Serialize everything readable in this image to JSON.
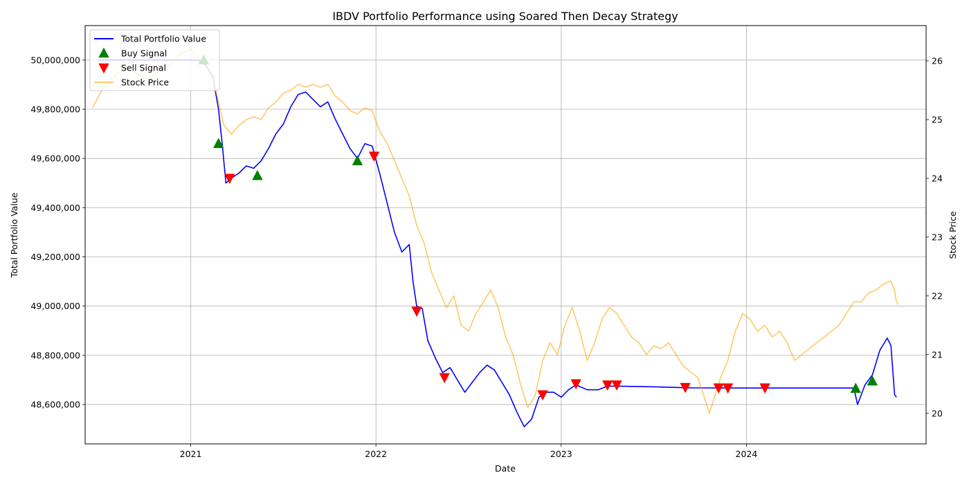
{
  "chart_data": {
    "type": "line",
    "title": "IBDV Portfolio Performance using Soared Then Decay Strategy",
    "xlabel": "Date",
    "ylabel_left": "Total Portfolio Value",
    "ylabel_right": "Stock Price",
    "x_range": [
      2020.43,
      2024.97
    ],
    "ylim_left": [
      48440000,
      50140000
    ],
    "ylim_right": [
      19.48,
      26.6
    ],
    "grid": true,
    "legend_position": "upper-left",
    "x_ticks": [
      {
        "value": 2021,
        "label": "2021"
      },
      {
        "value": 2022,
        "label": "2022"
      },
      {
        "value": 2023,
        "label": "2023"
      },
      {
        "value": 2024,
        "label": "2024"
      }
    ],
    "y_left_ticks": [
      {
        "value": 48600000,
        "label": "48,600,000"
      },
      {
        "value": 48800000,
        "label": "48,800,000"
      },
      {
        "value": 49000000,
        "label": "49,000,000"
      },
      {
        "value": 49200000,
        "label": "49,200,000"
      },
      {
        "value": 49400000,
        "label": "49,400,000"
      },
      {
        "value": 49600000,
        "label": "49,600,000"
      },
      {
        "value": 49800000,
        "label": "49,800,000"
      },
      {
        "value": 50000000,
        "label": "50,000,000"
      }
    ],
    "y_right_ticks": [
      {
        "value": 20,
        "label": "20"
      },
      {
        "value": 21,
        "label": "21"
      },
      {
        "value": 22,
        "label": "22"
      },
      {
        "value": 23,
        "label": "23"
      },
      {
        "value": 24,
        "label": "24"
      },
      {
        "value": 25,
        "label": "25"
      },
      {
        "value": 26,
        "label": "26"
      }
    ],
    "series": [
      {
        "name": "Total Portfolio Value",
        "axis": "left",
        "color": "#0000ff",
        "points": [
          [
            2020.5,
            50000000
          ],
          [
            2021.0,
            50000000
          ],
          [
            2021.04,
            50000000
          ],
          [
            2021.08,
            49980000
          ],
          [
            2021.12,
            49930000
          ],
          [
            2021.15,
            49800000
          ],
          [
            2021.17,
            49660000
          ],
          [
            2021.19,
            49500000
          ],
          [
            2021.22,
            49520000
          ],
          [
            2021.26,
            49540000
          ],
          [
            2021.3,
            49570000
          ],
          [
            2021.34,
            49560000
          ],
          [
            2021.38,
            49590000
          ],
          [
            2021.42,
            49640000
          ],
          [
            2021.46,
            49700000
          ],
          [
            2021.5,
            49740000
          ],
          [
            2021.54,
            49810000
          ],
          [
            2021.58,
            49860000
          ],
          [
            2021.62,
            49870000
          ],
          [
            2021.66,
            49840000
          ],
          [
            2021.7,
            49810000
          ],
          [
            2021.74,
            49830000
          ],
          [
            2021.78,
            49760000
          ],
          [
            2021.82,
            49700000
          ],
          [
            2021.86,
            49640000
          ],
          [
            2021.9,
            49600000
          ],
          [
            2021.94,
            49660000
          ],
          [
            2021.98,
            49650000
          ],
          [
            2022.02,
            49540000
          ],
          [
            2022.06,
            49420000
          ],
          [
            2022.1,
            49300000
          ],
          [
            2022.14,
            49220000
          ],
          [
            2022.18,
            49250000
          ],
          [
            2022.2,
            49100000
          ],
          [
            2022.22,
            49000000
          ],
          [
            2022.25,
            48990000
          ],
          [
            2022.28,
            48860000
          ],
          [
            2022.32,
            48790000
          ],
          [
            2022.36,
            48730000
          ],
          [
            2022.4,
            48750000
          ],
          [
            2022.44,
            48700000
          ],
          [
            2022.48,
            48650000
          ],
          [
            2022.52,
            48690000
          ],
          [
            2022.56,
            48730000
          ],
          [
            2022.6,
            48760000
          ],
          [
            2022.64,
            48740000
          ],
          [
            2022.68,
            48690000
          ],
          [
            2022.72,
            48640000
          ],
          [
            2022.76,
            48570000
          ],
          [
            2022.8,
            48510000
          ],
          [
            2022.84,
            48540000
          ],
          [
            2022.88,
            48630000
          ],
          [
            2022.92,
            48650000
          ],
          [
            2022.96,
            48650000
          ],
          [
            2023.0,
            48630000
          ],
          [
            2023.04,
            48660000
          ],
          [
            2023.08,
            48680000
          ],
          [
            2023.14,
            48660000
          ],
          [
            2023.2,
            48660000
          ],
          [
            2023.25,
            48675000
          ],
          [
            2023.3,
            48675000
          ],
          [
            2023.5,
            48672000
          ],
          [
            2023.7,
            48668000
          ],
          [
            2023.9,
            48667000
          ],
          [
            2024.2,
            48667000
          ],
          [
            2024.58,
            48667000
          ],
          [
            2024.6,
            48600000
          ],
          [
            2024.64,
            48680000
          ],
          [
            2024.68,
            48720000
          ],
          [
            2024.72,
            48820000
          ],
          [
            2024.76,
            48870000
          ],
          [
            2024.78,
            48840000
          ],
          [
            2024.8,
            48640000
          ],
          [
            2024.81,
            48630000
          ]
        ]
      },
      {
        "name": "Stock Price",
        "axis": "right",
        "color": "#ffa500",
        "opacity": 0.6,
        "points": [
          [
            2020.47,
            25.2
          ],
          [
            2020.52,
            25.5
          ],
          [
            2020.58,
            25.7
          ],
          [
            2020.64,
            25.9
          ],
          [
            2020.7,
            25.8
          ],
          [
            2020.76,
            25.7
          ],
          [
            2020.82,
            25.8
          ],
          [
            2020.88,
            25.9
          ],
          [
            2020.94,
            26.1
          ],
          [
            2021.0,
            26.2
          ],
          [
            2021.04,
            26.05
          ],
          [
            2021.08,
            25.95
          ],
          [
            2021.12,
            25.7
          ],
          [
            2021.15,
            25.3
          ],
          [
            2021.18,
            24.9
          ],
          [
            2021.22,
            24.75
          ],
          [
            2021.26,
            24.9
          ],
          [
            2021.3,
            25.0
          ],
          [
            2021.34,
            25.05
          ],
          [
            2021.38,
            25.0
          ],
          [
            2021.42,
            25.2
          ],
          [
            2021.46,
            25.3
          ],
          [
            2021.5,
            25.45
          ],
          [
            2021.54,
            25.5
          ],
          [
            2021.58,
            25.6
          ],
          [
            2021.62,
            25.55
          ],
          [
            2021.66,
            25.6
          ],
          [
            2021.7,
            25.55
          ],
          [
            2021.74,
            25.6
          ],
          [
            2021.78,
            25.4
          ],
          [
            2021.82,
            25.3
          ],
          [
            2021.86,
            25.15
          ],
          [
            2021.9,
            25.1
          ],
          [
            2021.94,
            25.2
          ],
          [
            2021.98,
            25.15
          ],
          [
            2022.02,
            24.8
          ],
          [
            2022.06,
            24.6
          ],
          [
            2022.1,
            24.3
          ],
          [
            2022.14,
            24.0
          ],
          [
            2022.18,
            23.7
          ],
          [
            2022.22,
            23.2
          ],
          [
            2022.26,
            22.9
          ],
          [
            2022.3,
            22.4
          ],
          [
            2022.34,
            22.1
          ],
          [
            2022.38,
            21.8
          ],
          [
            2022.42,
            22.0
          ],
          [
            2022.46,
            21.5
          ],
          [
            2022.5,
            21.4
          ],
          [
            2022.54,
            21.7
          ],
          [
            2022.58,
            21.9
          ],
          [
            2022.62,
            22.1
          ],
          [
            2022.66,
            21.8
          ],
          [
            2022.7,
            21.3
          ],
          [
            2022.74,
            21.0
          ],
          [
            2022.78,
            20.5
          ],
          [
            2022.82,
            20.1
          ],
          [
            2022.86,
            20.3
          ],
          [
            2022.9,
            20.9
          ],
          [
            2022.94,
            21.2
          ],
          [
            2022.98,
            21.0
          ],
          [
            2023.02,
            21.5
          ],
          [
            2023.06,
            21.8
          ],
          [
            2023.1,
            21.4
          ],
          [
            2023.14,
            20.9
          ],
          [
            2023.18,
            21.2
          ],
          [
            2023.22,
            21.6
          ],
          [
            2023.26,
            21.8
          ],
          [
            2023.3,
            21.7
          ],
          [
            2023.34,
            21.5
          ],
          [
            2023.38,
            21.3
          ],
          [
            2023.42,
            21.2
          ],
          [
            2023.46,
            21.0
          ],
          [
            2023.5,
            21.15
          ],
          [
            2023.54,
            21.1
          ],
          [
            2023.58,
            21.2
          ],
          [
            2023.62,
            21.0
          ],
          [
            2023.66,
            20.8
          ],
          [
            2023.7,
            20.7
          ],
          [
            2023.74,
            20.6
          ],
          [
            2023.78,
            20.2
          ],
          [
            2023.8,
            20.0
          ],
          [
            2023.83,
            20.3
          ],
          [
            2023.86,
            20.6
          ],
          [
            2023.9,
            20.9
          ],
          [
            2023.94,
            21.4
          ],
          [
            2023.98,
            21.7
          ],
          [
            2024.02,
            21.6
          ],
          [
            2024.06,
            21.4
          ],
          [
            2024.1,
            21.5
          ],
          [
            2024.14,
            21.3
          ],
          [
            2024.18,
            21.4
          ],
          [
            2024.22,
            21.2
          ],
          [
            2024.26,
            20.9
          ],
          [
            2024.3,
            21.0
          ],
          [
            2024.34,
            21.1
          ],
          [
            2024.38,
            21.2
          ],
          [
            2024.42,
            21.3
          ],
          [
            2024.46,
            21.4
          ],
          [
            2024.5,
            21.5
          ],
          [
            2024.54,
            21.7
          ],
          [
            2024.58,
            21.9
          ],
          [
            2024.62,
            21.9
          ],
          [
            2024.66,
            22.05
          ],
          [
            2024.7,
            22.1
          ],
          [
            2024.74,
            22.2
          ],
          [
            2024.78,
            22.25
          ],
          [
            2024.8,
            22.1
          ],
          [
            2024.81,
            21.9
          ],
          [
            2024.82,
            21.85
          ]
        ]
      }
    ],
    "signals": [
      {
        "name": "Buy Signal",
        "color": "#008000",
        "marker": "triangle-up",
        "points": [
          [
            2021.07,
            50000000
          ],
          [
            2021.15,
            49660000
          ],
          [
            2021.36,
            49530000
          ],
          [
            2021.9,
            49590000
          ],
          [
            2024.59,
            48665000
          ],
          [
            2024.68,
            48695000
          ]
        ]
      },
      {
        "name": "Sell Signal",
        "color": "#ff0000",
        "marker": "triangle-down",
        "points": [
          [
            2021.21,
            49520000
          ],
          [
            2021.99,
            49610000
          ],
          [
            2022.22,
            48980000
          ],
          [
            2022.37,
            48710000
          ],
          [
            2022.9,
            48640000
          ],
          [
            2023.08,
            48685000
          ],
          [
            2023.25,
            48680000
          ],
          [
            2023.3,
            48680000
          ],
          [
            2023.67,
            48670000
          ],
          [
            2023.85,
            48668000
          ],
          [
            2023.9,
            48668000
          ],
          [
            2024.1,
            48668000
          ]
        ]
      }
    ],
    "legend": [
      {
        "label": "Total Portfolio Value",
        "type": "line",
        "color": "#0000ff"
      },
      {
        "label": "Buy Signal",
        "type": "triangle-up",
        "color": "#008000"
      },
      {
        "label": "Sell Signal",
        "type": "triangle-down",
        "color": "#ff0000"
      },
      {
        "label": "Stock Price",
        "type": "line",
        "color": "#ffa500"
      }
    ]
  }
}
